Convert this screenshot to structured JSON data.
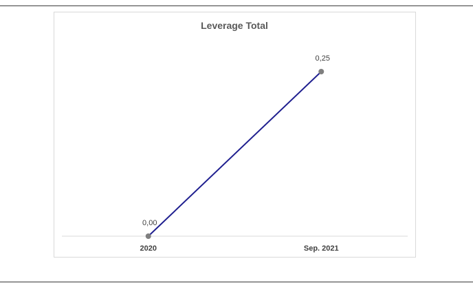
{
  "chart_data": {
    "type": "line",
    "title": "Leverage Total",
    "categories": [
      "2020",
      "Sep. 2021"
    ],
    "series": [
      {
        "values": [
          0.0,
          0.25
        ],
        "value_labels": [
          "0,00",
          "0,25"
        ]
      }
    ],
    "ylim": [
      0,
      0.25
    ],
    "grid": false,
    "legend": "none",
    "colors": {
      "line": "#1f1f8f",
      "marker": "#7f7f7f",
      "axis": "#d9d9d9",
      "rule": "#3a3a3a"
    }
  }
}
